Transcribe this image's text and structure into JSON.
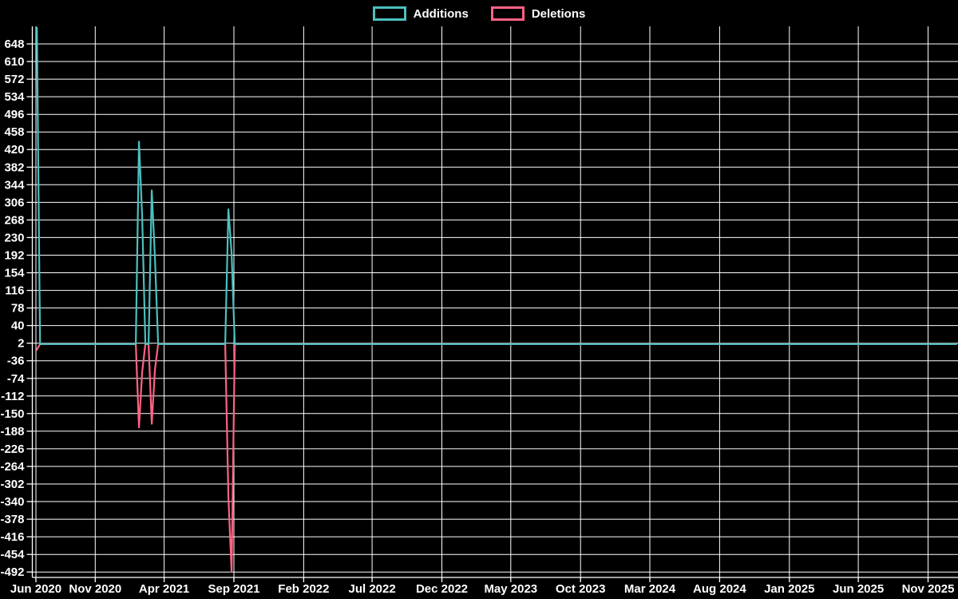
{
  "chart_data": {
    "type": "line",
    "title": "",
    "xlabel": "",
    "ylabel": "",
    "background_color": "#000000",
    "grid": true,
    "legend_position": "top-center",
    "legend": [
      {
        "label": "Additions",
        "color": "#4BC0C0"
      },
      {
        "label": "Deletions",
        "color": "#FF6384"
      }
    ],
    "y_axis": {
      "tick_step": 38,
      "ylim": [
        -504,
        686
      ],
      "ticks": [
        648,
        610,
        572,
        534,
        496,
        458,
        420,
        382,
        344,
        306,
        268,
        230,
        192,
        154,
        116,
        78,
        40,
        2,
        -36,
        -74,
        -112,
        -150,
        -188,
        -226,
        -264,
        -302,
        -340,
        -378,
        -416,
        -454,
        -492
      ]
    },
    "x_axis": {
      "unit": "weekly buckets, Jun 2020 - Dec 2025",
      "ticks": [
        {
          "label": "Jun 2020",
          "date": "2020-06-24"
        },
        {
          "label": "Nov 2020",
          "date": "2020-11-01"
        },
        {
          "label": "Apr 2021",
          "date": "2021-04-01"
        },
        {
          "label": "Sep 2021",
          "date": "2021-09-01"
        },
        {
          "label": "Feb 2022",
          "date": "2022-02-01"
        },
        {
          "label": "Jul 2022",
          "date": "2022-07-01"
        },
        {
          "label": "Dec 2022",
          "date": "2022-12-01"
        },
        {
          "label": "May 2023",
          "date": "2023-05-01"
        },
        {
          "label": "Oct 2023",
          "date": "2023-10-01"
        },
        {
          "label": "Mar 2024",
          "date": "2024-03-01"
        },
        {
          "label": "Aug 2024",
          "date": "2024-08-01"
        },
        {
          "label": "Jan 2025",
          "date": "2025-01-01"
        },
        {
          "label": "Jun 2025",
          "date": "2025-06-01"
        },
        {
          "label": "Nov 2025",
          "date": "2025-11-01"
        }
      ]
    },
    "series": [
      {
        "name": "Additions",
        "color": "#4BC0C0",
        "baseline": 0,
        "start": "2020-06-26",
        "end": "2026-01-02",
        "interval_days": 7,
        "note": "all weeks are 0 except the following",
        "nonzero_points": {
          "2020-06-26": 683,
          "2021-02-05": 437,
          "2021-02-12": 275,
          "2021-03-05": 332,
          "2021-03-12": 185,
          "2021-08-20": 291,
          "2021-08-27": 196
        }
      },
      {
        "name": "Deletions",
        "color": "#FF6384",
        "baseline": 0,
        "start": "2020-06-26",
        "end": "2026-01-02",
        "interval_days": 7,
        "note": "all weeks are 0 except the following",
        "nonzero_points": {
          "2020-06-26": -12,
          "2021-02-05": -180,
          "2021-02-12": -60,
          "2021-03-05": -172,
          "2021-03-12": -55,
          "2021-08-20": -330,
          "2021-08-27": -492
        }
      }
    ]
  }
}
